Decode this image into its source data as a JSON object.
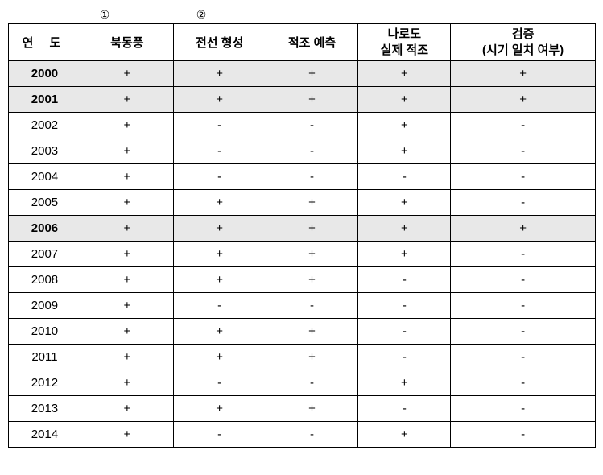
{
  "markers": {
    "m1": "①",
    "m2": "②"
  },
  "headers": {
    "year": "연 도",
    "col1": "북동풍",
    "col2": "전선 형성",
    "col3": "적조 예측",
    "col4_line1": "나로도",
    "col4_line2": "실제 적조",
    "col5_line1": "검증",
    "col5_line2": "(시기 일치 여부)"
  },
  "rows": [
    {
      "year": "2000",
      "c1": "+",
      "c2": "+",
      "c3": "+",
      "c4": "+",
      "c5": "+",
      "hl": true
    },
    {
      "year": "2001",
      "c1": "+",
      "c2": "+",
      "c3": "+",
      "c4": "+",
      "c5": "+",
      "hl": true
    },
    {
      "year": "2002",
      "c1": "+",
      "c2": "-",
      "c3": "-",
      "c4": "+",
      "c5": "-",
      "hl": false
    },
    {
      "year": "2003",
      "c1": "+",
      "c2": "-",
      "c3": "-",
      "c4": "+",
      "c5": "-",
      "hl": false
    },
    {
      "year": "2004",
      "c1": "+",
      "c2": "-",
      "c3": "-",
      "c4": "-",
      "c5": "-",
      "hl": false
    },
    {
      "year": "2005",
      "c1": "+",
      "c2": "+",
      "c3": "+",
      "c4": "+",
      "c5": "-",
      "hl": false
    },
    {
      "year": "2006",
      "c1": "+",
      "c2": "+",
      "c3": "+",
      "c4": "+",
      "c5": "+",
      "hl": true
    },
    {
      "year": "2007",
      "c1": "+",
      "c2": "+",
      "c3": "+",
      "c4": "+",
      "c5": "-",
      "hl": false
    },
    {
      "year": "2008",
      "c1": "+",
      "c2": "+",
      "c3": "+",
      "c4": "-",
      "c5": "-",
      "hl": false
    },
    {
      "year": "2009",
      "c1": "+",
      "c2": "-",
      "c3": "-",
      "c4": "-",
      "c5": "-",
      "hl": false
    },
    {
      "year": "2010",
      "c1": "+",
      "c2": "+",
      "c3": "+",
      "c4": "-",
      "c5": "-",
      "hl": false
    },
    {
      "year": "2011",
      "c1": "+",
      "c2": "+",
      "c3": "+",
      "c4": "-",
      "c5": "-",
      "hl": false
    },
    {
      "year": "2012",
      "c1": "+",
      "c2": "-",
      "c3": "-",
      "c4": "+",
      "c5": "-",
      "hl": false
    },
    {
      "year": "2013",
      "c1": "+",
      "c2": "+",
      "c3": "+",
      "c4": "-",
      "c5": "-",
      "hl": false
    },
    {
      "year": "2014",
      "c1": "+",
      "c2": "-",
      "c3": "-",
      "c4": "+",
      "c5": "-",
      "hl": false
    }
  ],
  "colors": {
    "background": "#ffffff",
    "border": "#000000",
    "highlight": "#e8e8e8",
    "text": "#000000"
  }
}
